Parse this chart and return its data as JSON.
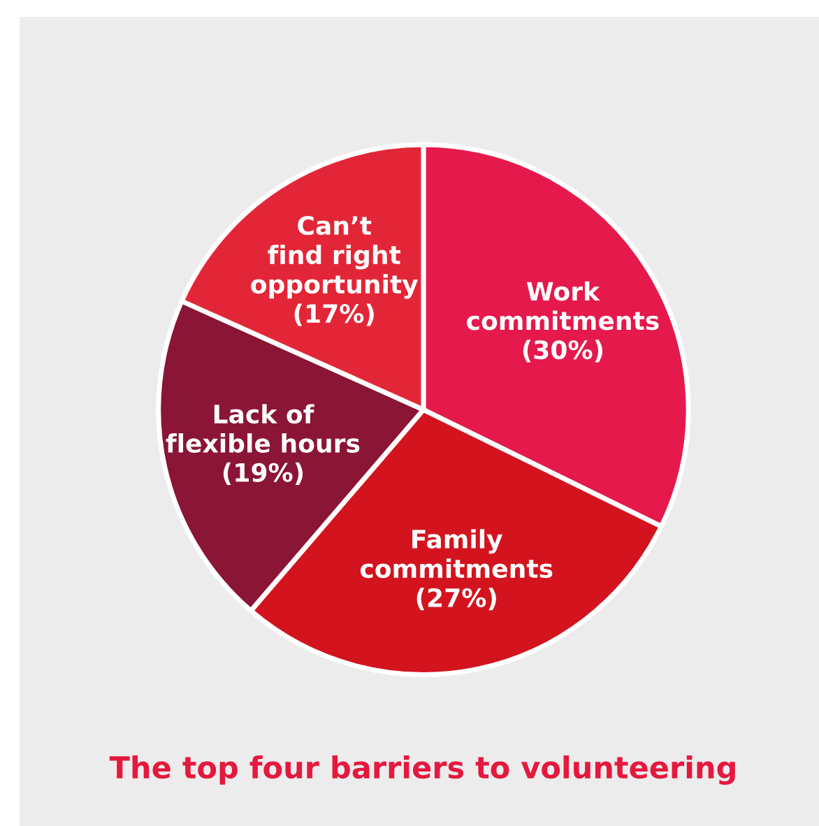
{
  "chart_data": {
    "type": "pie",
    "title": "The top four barriers to volunteering",
    "categories": [
      "Work\ncommitments",
      "Family\ncommitments",
      "Lack of\nflexible hours",
      "Can’t\nfind right\nopportunity"
    ],
    "values": [
      30,
      27,
      19,
      17
    ],
    "value_labels": [
      "(30%)",
      "(27%)",
      "(19%)",
      "(17%)"
    ],
    "colors": [
      "#e5194b",
      "#d3141e",
      "#8a1535",
      "#e32637"
    ],
    "legend": false
  }
}
